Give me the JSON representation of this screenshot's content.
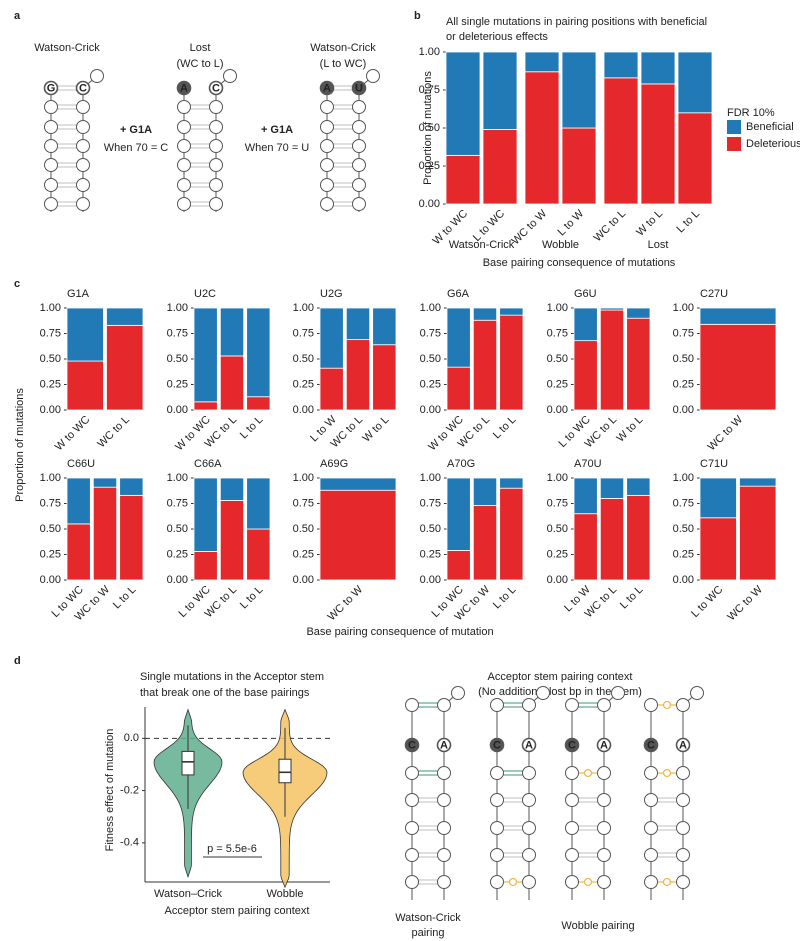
{
  "panel_labels": [
    "a",
    "b",
    "c",
    "d"
  ],
  "panel_a": {
    "titles": [
      [
        "Watson-Crick"
      ],
      [
        "Lost",
        "(WC to L)"
      ],
      [
        "Watson-Crick",
        "(L to WC)"
      ]
    ],
    "annotations": [
      [
        "+ G1A",
        "When 70 = C"
      ],
      [
        "+ G1A",
        "When 70 = U"
      ]
    ],
    "nodes": [
      [
        "G",
        "C"
      ],
      [
        "A",
        "C"
      ],
      [
        "A",
        "U"
      ]
    ]
  },
  "panel_c": {
    "ylabel": "Proportion of mutations",
    "xlabel": "Base pairing consequence of mutation"
  },
  "panel_d_diagram": {
    "title": [
      "Acceptor stem pairing context",
      "(No additional lost bp in the stem)"
    ],
    "nodes": [
      [
        "C",
        "A"
      ],
      [
        "C",
        "A"
      ],
      [
        "C",
        "A"
      ],
      [
        "C",
        "A"
      ]
    ],
    "captions": [
      [
        "Watson-Crick",
        "pairing"
      ],
      [
        "Wobble pairing"
      ]
    ]
  },
  "chart_data": [
    {
      "type": "stacked_bar",
      "title": [
        "All single mutations in pairing positions with beneficial",
        "or deleterious effects"
      ],
      "ylabel": "Proportion of mutations",
      "xlabel": "Base pairing consequence of mutations",
      "categories": [
        "W to WC",
        "L to WC",
        "WC to W",
        "L to W",
        "WC to L",
        "W to L",
        "L to L"
      ],
      "groups": [
        "Watson-Crick",
        "Wobble",
        "Lost"
      ],
      "legend_title": "FDR 10%",
      "legend": "right",
      "series": [
        {
          "name": "Beneficial",
          "color": "#2179b5",
          "values": [
            0.68,
            0.51,
            0.13,
            0.5,
            0.17,
            0.21,
            0.4
          ]
        },
        {
          "name": "Deleterious",
          "color": "#e5282c",
          "values": [
            0.32,
            0.49,
            0.87,
            0.5,
            0.83,
            0.79,
            0.6
          ]
        }
      ],
      "ylim": [
        0,
        1
      ],
      "yticks": [
        {
          "value": 0,
          "label": "0.00"
        },
        {
          "value": 0.25,
          "label": "0.25"
        },
        {
          "value": 0.5,
          "label": "0.50"
        },
        {
          "value": 0.75,
          "label": "0.75"
        },
        {
          "value": 1,
          "label": "1.00"
        }
      ]
    },
    {
      "type": "stacked_bar",
      "title": "G1A",
      "categories": [
        "W to WC",
        "WC to L"
      ],
      "series": [
        {
          "color": "#2179b5",
          "values": [
            0.52,
            0.17
          ]
        },
        {
          "color": "#e5282c",
          "values": [
            0.48,
            0.83
          ]
        }
      ],
      "ylim": [
        0,
        1
      ],
      "yticks": [
        {
          "value": 0,
          "label": "0.00"
        },
        {
          "value": 0.25,
          "label": "0.25"
        },
        {
          "value": 0.5,
          "label": "0.50"
        },
        {
          "value": 0.75,
          "label": "0.75"
        },
        {
          "value": 1,
          "label": "1.00"
        }
      ]
    },
    {
      "type": "stacked_bar",
      "title": "U2C",
      "categories": [
        "W to WC",
        "WC to L",
        "L to L"
      ],
      "series": [
        {
          "color": "#2179b5",
          "values": [
            0.92,
            0.47,
            0.87
          ]
        },
        {
          "color": "#e5282c",
          "values": [
            0.08,
            0.53,
            0.13
          ]
        }
      ],
      "ylim": [
        0,
        1
      ],
      "yticks": [
        {
          "value": 0,
          "label": "0.00"
        },
        {
          "value": 0.25,
          "label": "0.25"
        },
        {
          "value": 0.5,
          "label": "0.50"
        },
        {
          "value": 0.75,
          "label": "0.75"
        },
        {
          "value": 1,
          "label": "1.00"
        }
      ]
    },
    {
      "type": "stacked_bar",
      "title": "U2G",
      "categories": [
        "L to W",
        "WC to L",
        "W to L"
      ],
      "series": [
        {
          "color": "#2179b5",
          "values": [
            0.59,
            0.31,
            0.36
          ]
        },
        {
          "color": "#e5282c",
          "values": [
            0.41,
            0.69,
            0.64
          ]
        }
      ],
      "ylim": [
        0,
        1
      ],
      "yticks": [
        {
          "value": 0,
          "label": "0.00"
        },
        {
          "value": 0.25,
          "label": "0.25"
        },
        {
          "value": 0.5,
          "label": "0.50"
        },
        {
          "value": 0.75,
          "label": "0.75"
        },
        {
          "value": 1,
          "label": "1.00"
        }
      ]
    },
    {
      "type": "stacked_bar",
      "title": "G6A",
      "categories": [
        "W to WC",
        "WC to L",
        "L to L"
      ],
      "series": [
        {
          "color": "#2179b5",
          "values": [
            0.58,
            0.12,
            0.07
          ]
        },
        {
          "color": "#e5282c",
          "values": [
            0.42,
            0.88,
            0.93
          ]
        }
      ],
      "ylim": [
        0,
        1
      ],
      "yticks": [
        {
          "value": 0,
          "label": "0.00"
        },
        {
          "value": 0.25,
          "label": "0.25"
        },
        {
          "value": 0.5,
          "label": "0.50"
        },
        {
          "value": 0.75,
          "label": "0.75"
        },
        {
          "value": 1,
          "label": "1.00"
        }
      ]
    },
    {
      "type": "stacked_bar",
      "title": "G6U",
      "categories": [
        "L to WC",
        "WC to L",
        "W to L"
      ],
      "series": [
        {
          "color": "#2179b5",
          "values": [
            0.32,
            0.02,
            0.1
          ]
        },
        {
          "color": "#e5282c",
          "values": [
            0.68,
            0.98,
            0.9
          ]
        }
      ],
      "ylim": [
        0,
        1
      ],
      "yticks": [
        {
          "value": 0,
          "label": "0.00"
        },
        {
          "value": 0.25,
          "label": "0.25"
        },
        {
          "value": 0.5,
          "label": "0.50"
        },
        {
          "value": 0.75,
          "label": "0.75"
        },
        {
          "value": 1,
          "label": "1.00"
        }
      ]
    },
    {
      "type": "stacked_bar",
      "title": "C27U",
      "categories": [
        "WC to W"
      ],
      "series": [
        {
          "color": "#2179b5",
          "values": [
            0.16
          ]
        },
        {
          "color": "#e5282c",
          "values": [
            0.84
          ]
        }
      ],
      "ylim": [
        0,
        1
      ],
      "yticks": [
        {
          "value": 0,
          "label": "0.00"
        },
        {
          "value": 0.25,
          "label": "0.25"
        },
        {
          "value": 0.5,
          "label": "0.50"
        },
        {
          "value": 0.75,
          "label": "0.75"
        },
        {
          "value": 1,
          "label": "1.00"
        }
      ]
    },
    {
      "type": "stacked_bar",
      "title": "C66U",
      "categories": [
        "L to WC",
        "WC to W",
        "L to L"
      ],
      "series": [
        {
          "color": "#2179b5",
          "values": [
            0.45,
            0.09,
            0.17
          ]
        },
        {
          "color": "#e5282c",
          "values": [
            0.55,
            0.91,
            0.83
          ]
        }
      ],
      "ylim": [
        0,
        1
      ],
      "yticks": [
        {
          "value": 0,
          "label": "0.00"
        },
        {
          "value": 0.25,
          "label": "0.25"
        },
        {
          "value": 0.5,
          "label": "0.50"
        },
        {
          "value": 0.75,
          "label": "0.75"
        },
        {
          "value": 1,
          "label": "1.00"
        }
      ]
    },
    {
      "type": "stacked_bar",
      "title": "C66A",
      "categories": [
        "L to WC",
        "WC to L",
        "L to L"
      ],
      "series": [
        {
          "color": "#2179b5",
          "values": [
            0.72,
            0.22,
            0.5
          ]
        },
        {
          "color": "#e5282c",
          "values": [
            0.28,
            0.78,
            0.5
          ]
        }
      ],
      "ylim": [
        0,
        1
      ],
      "yticks": [
        {
          "value": 0,
          "label": "0.00"
        },
        {
          "value": 0.25,
          "label": "0.25"
        },
        {
          "value": 0.5,
          "label": "0.50"
        },
        {
          "value": 0.75,
          "label": "0.75"
        },
        {
          "value": 1,
          "label": "1.00"
        }
      ]
    },
    {
      "type": "stacked_bar",
      "title": "A69G",
      "categories": [
        "WC to W"
      ],
      "series": [
        {
          "color": "#2179b5",
          "values": [
            0.12
          ]
        },
        {
          "color": "#e5282c",
          "values": [
            0.88
          ]
        }
      ],
      "ylim": [
        0,
        1
      ],
      "yticks": [
        {
          "value": 0,
          "label": "0.00"
        },
        {
          "value": 0.25,
          "label": "0.25"
        },
        {
          "value": 0.5,
          "label": "0.50"
        },
        {
          "value": 0.75,
          "label": "0.75"
        },
        {
          "value": 1,
          "label": "1.00"
        }
      ]
    },
    {
      "type": "stacked_bar",
      "title": "A70G",
      "categories": [
        "L to WC",
        "WC to W",
        "L to L"
      ],
      "series": [
        {
          "color": "#2179b5",
          "values": [
            0.71,
            0.27,
            0.1
          ]
        },
        {
          "color": "#e5282c",
          "values": [
            0.29,
            0.73,
            0.9
          ]
        }
      ],
      "ylim": [
        0,
        1
      ],
      "yticks": [
        {
          "value": 0,
          "label": "0.00"
        },
        {
          "value": 0.25,
          "label": "0.25"
        },
        {
          "value": 0.5,
          "label": "0.50"
        },
        {
          "value": 0.75,
          "label": "0.75"
        },
        {
          "value": 1,
          "label": "1.00"
        }
      ]
    },
    {
      "type": "stacked_bar",
      "title": "A70U",
      "categories": [
        "L to W",
        "WC to L",
        "L to L"
      ],
      "series": [
        {
          "color": "#2179b5",
          "values": [
            0.35,
            0.2,
            0.17
          ]
        },
        {
          "color": "#e5282c",
          "values": [
            0.65,
            0.8,
            0.83
          ]
        }
      ],
      "ylim": [
        0,
        1
      ],
      "yticks": [
        {
          "value": 0,
          "label": "0.00"
        },
        {
          "value": 0.25,
          "label": "0.25"
        },
        {
          "value": 0.5,
          "label": "0.50"
        },
        {
          "value": 0.75,
          "label": "0.75"
        },
        {
          "value": 1,
          "label": "1.00"
        }
      ]
    },
    {
      "type": "stacked_bar",
      "title": "C71U",
      "categories": [
        "L to WC",
        "WC to W"
      ],
      "series": [
        {
          "color": "#2179b5",
          "values": [
            0.39,
            0.08
          ]
        },
        {
          "color": "#e5282c",
          "values": [
            0.61,
            0.92
          ]
        }
      ],
      "ylim": [
        0,
        1
      ],
      "yticks": [
        {
          "value": 0,
          "label": "0.00"
        },
        {
          "value": 0.25,
          "label": "0.25"
        },
        {
          "value": 0.5,
          "label": "0.50"
        },
        {
          "value": 0.75,
          "label": "0.75"
        },
        {
          "value": 1,
          "label": "1.00"
        }
      ]
    },
    {
      "type": "violin",
      "title": [
        "Single mutations in the Acceptor stem",
        "that break one of the base pairings"
      ],
      "ylabel": "Fitness effect of mutation",
      "xlabel": "Acceptor stem pairing context",
      "violins": [
        {
          "name": "Watson–Crick",
          "color": "#5fae8e",
          "range": [
            -0.53,
            0.11
          ],
          "whiskers": [
            -0.27,
            0.05
          ],
          "q1": -0.14,
          "median": -0.09,
          "q3": -0.05
        },
        {
          "name": "Wobble",
          "color": "#f5c262",
          "range": [
            -0.57,
            0.11
          ],
          "whiskers": [
            -0.3,
            0.04
          ],
          "q1": -0.17,
          "median": -0.13,
          "q3": -0.08
        }
      ],
      "hline": 0,
      "annotation": "p =  5.5e-6",
      "ylim": [
        -0.55,
        0.12
      ],
      "yticks": [
        {
          "value": 0,
          "label": "0.0"
        },
        -0.2,
        -0.4
      ]
    }
  ]
}
